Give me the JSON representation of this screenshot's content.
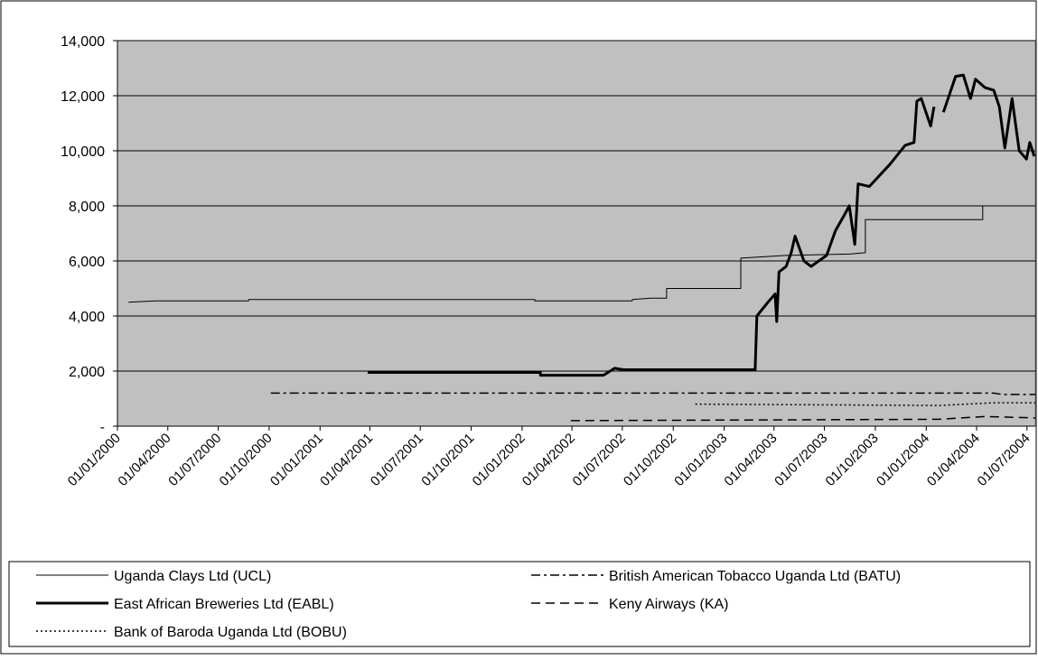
{
  "chart_data": {
    "type": "line",
    "xlim": [
      "01/01/2000",
      "16/07/2004"
    ],
    "xticks": [
      "01/01/2000",
      "01/04/2000",
      "01/07/2000",
      "01/10/2000",
      "01/01/2001",
      "01/04/2001",
      "01/07/2001",
      "01/10/2001",
      "01/01/2002",
      "01/04/2002",
      "01/07/2002",
      "01/10/2002",
      "01/01/2003",
      "01/04/2003",
      "01/07/2003",
      "01/10/2003",
      "01/01/2004",
      "01/04/2004",
      "01/07/2004"
    ],
    "ylim": [
      0,
      14000
    ],
    "yticks": [
      {
        "value": 0,
        "label": "-"
      },
      {
        "value": 2000,
        "label": "2,000"
      },
      {
        "value": 4000,
        "label": "4,000"
      },
      {
        "value": 6000,
        "label": "6,000"
      },
      {
        "value": 8000,
        "label": "8,000"
      },
      {
        "value": 10000,
        "label": "10,000"
      },
      {
        "value": 12000,
        "label": "12,000"
      },
      {
        "value": 14000,
        "label": "14,000"
      }
    ],
    "grid": true,
    "background": "#c0c0c0",
    "legend": "bottom",
    "series": [
      {
        "name": "Uganda Clays Ltd (UCL)",
        "color": "#000000",
        "style": "solid",
        "x": [
          "21/01/2000",
          "10/03/2000",
          "26/03/2000",
          "25/08/2000",
          "25/08/2000",
          "24/01/2002",
          "24/01/2002",
          "19/07/2002",
          "19/07/2002",
          "21/08/2002",
          "19/09/2002",
          "19/09/2002",
          "31/01/2003",
          "31/01/2003",
          "23/04/2003",
          "15/08/2003",
          "13/09/2003",
          "13/09/2003",
          "12/04/2004",
          "12/04/2004",
          "16/07/2004"
        ],
        "values": [
          4500,
          4550,
          4550,
          4550,
          4600,
          4600,
          4550,
          4550,
          4600,
          4650,
          4650,
          5000,
          5000,
          6100,
          6200,
          6250,
          6300,
          7500,
          7500,
          8000,
          8000
        ]
      },
      {
        "name": "British American Tobacco Uganda Ltd (BATU)",
        "color": "#000000",
        "style": "dashdot",
        "x": [
          "04/10/2000",
          "02/05/2004",
          "18/05/2004",
          "16/07/2004"
        ],
        "values": [
          1200,
          1200,
          1150,
          1150
        ]
      },
      {
        "name": "East African Breweries Ltd (EABL)",
        "color": "#000000",
        "style": "thick",
        "x": [
          "28/03/2001",
          "03/02/2002",
          "03/02/2002",
          "28/05/2002",
          "17/06/2002",
          "03/07/2002",
          "26/02/2003",
          "01/03/2003",
          "21/03/2003",
          "03/04/2003",
          "06/04/2003",
          "10/04/2003",
          "23/04/2003",
          "02/05/2003",
          "09/05/2003",
          "25/05/2003",
          "07/06/2003",
          "05/07/2003",
          "21/07/2003",
          "07/08/2003",
          "15/08/2003",
          "25/08/2003",
          "31/08/2003",
          "20/09/2003",
          "27/10/2003",
          "24/11/2003",
          "10/12/2003",
          "15/12/2003",
          "23/12/2003",
          "09/01/2004",
          "15/01/2004",
          "25/01/2004",
          "01/02/2004",
          "23/02/2004",
          "08/03/2004",
          "21/03/2004",
          "30/03/2004",
          "16/04/2004",
          "02/05/2004",
          "12/05/2004",
          "22/05/2004",
          "04/06/2004",
          "17/06/2004",
          "30/06/2004",
          "06/07/2004",
          "14/07/2004"
        ],
        "values": [
          1950,
          1950,
          1850,
          1850,
          2100,
          2050,
          2050,
          4000,
          4500,
          4800,
          3800,
          5600,
          5800,
          6300,
          6900,
          6000,
          5800,
          6200,
          7100,
          7700,
          8000,
          6600,
          8800,
          8700,
          9500,
          10200,
          10300,
          11800,
          11900,
          10900,
          11600,
          null,
          11400,
          12700,
          12750,
          11900,
          12600,
          12300,
          12200,
          11600,
          10100,
          11900,
          10000,
          9700,
          10300,
          9800
        ]
      },
      {
        "name": "Keny Airways (KA)",
        "color": "#000000",
        "style": "dashed",
        "x": [
          "30/03/2002",
          "25/01/2004",
          "16/04/2004",
          "16/07/2004"
        ],
        "values": [
          200,
          250,
          350,
          300
        ]
      },
      {
        "name": "Bank of Baroda Uganda Ltd (BOBU)",
        "color": "#000000",
        "style": "dotted",
        "x": [
          "10/11/2002",
          "25/01/2004",
          "02/05/2004",
          "16/07/2004"
        ],
        "values": [
          800,
          750,
          850,
          850
        ]
      }
    ]
  }
}
